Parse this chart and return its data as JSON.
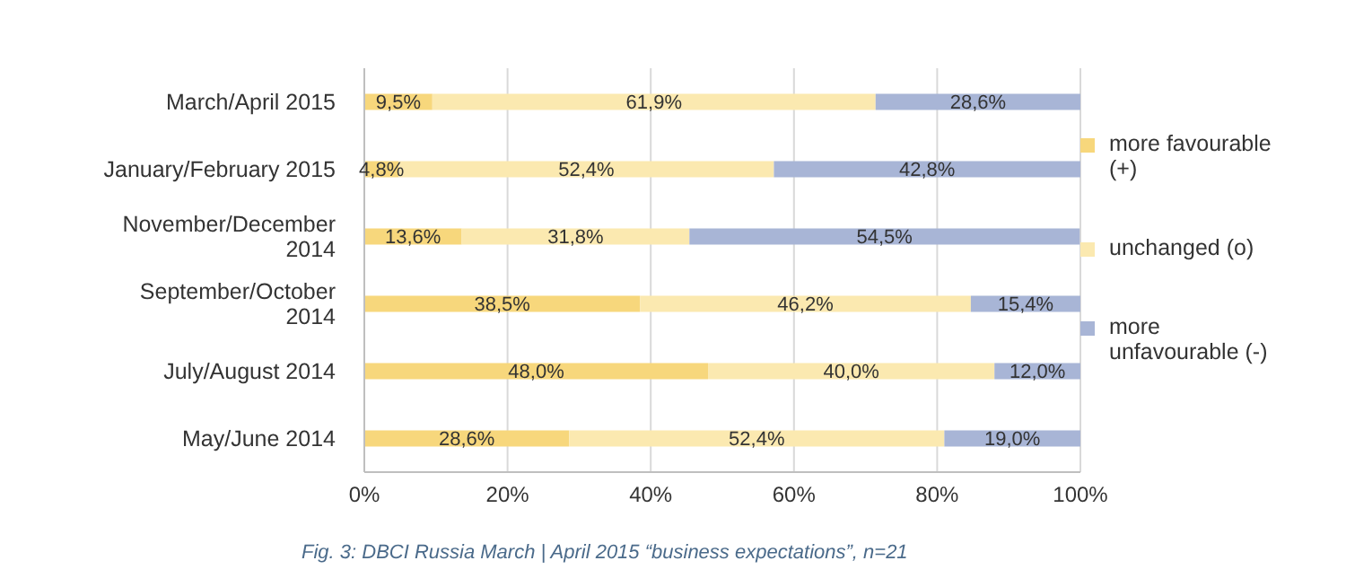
{
  "chart_data": {
    "type": "bar",
    "orientation": "horizontal",
    "stacked": true,
    "categories": [
      "March/April 2015",
      "January/February 2015",
      "November/December 2014",
      "September/October 2014",
      "July/August 2014",
      "May/June 2014"
    ],
    "series": [
      {
        "name": "more favourable (+)",
        "color": "#f7d77c",
        "values": [
          9.5,
          4.8,
          13.6,
          38.5,
          48.0,
          28.6
        ],
        "value_labels": [
          "9,5%",
          "4,8%",
          "13,6%",
          "38,5%",
          "48,0%",
          "28,6%"
        ]
      },
      {
        "name": "unchanged (o)",
        "color": "#fbe9b0",
        "values": [
          61.9,
          52.4,
          31.8,
          46.2,
          40.0,
          52.4
        ],
        "value_labels": [
          "61,9%",
          "52,4%",
          "31,8%",
          "46,2%",
          "40,0%",
          "52,4%"
        ]
      },
      {
        "name": "more unfavourable (-)",
        "color": "#a8b5d6",
        "values": [
          28.6,
          42.8,
          54.5,
          15.4,
          12.0,
          19.0
        ],
        "value_labels": [
          "28,6%",
          "42,8%",
          "54,5%",
          "15,4%",
          "12,0%",
          "19,0%"
        ]
      }
    ],
    "xlim": [
      0,
      100
    ],
    "xticks": [
      {
        "value": 0,
        "label": "0%"
      },
      {
        "value": 20,
        "label": "20%"
      },
      {
        "value": 40,
        "label": "40%"
      },
      {
        "value": 60,
        "label": "60%"
      },
      {
        "value": 80,
        "label": "80%"
      },
      {
        "value": 100,
        "label": "100%"
      }
    ],
    "grid": "x",
    "legend": "right",
    "annotations": [
      "Fig. 3: DBCI Russia March | April 2015 “business expectations”, n=21"
    ]
  }
}
